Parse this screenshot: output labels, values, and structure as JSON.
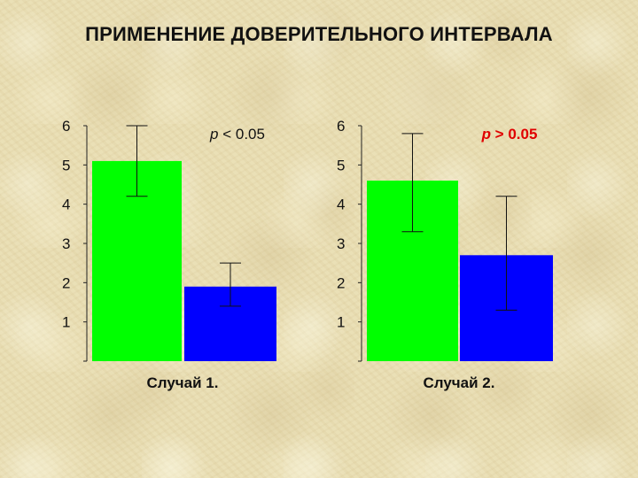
{
  "title": "ПРИМЕНЕНИЕ ДОВЕРИТЕЛЬНОГО ИНТЕРВАЛА",
  "colors": {
    "green": "#00ff00",
    "blue": "#0000ff",
    "red": "#e00000",
    "text": "#111111"
  },
  "chart_data": [
    {
      "type": "bar",
      "categories": [
        "",
        ""
      ],
      "values": [
        5.1,
        1.9
      ],
      "error_high": [
        6.0,
        2.5
      ],
      "error_low": [
        4.2,
        1.4
      ],
      "bar_colors": [
        "#00ff00",
        "#0000ff"
      ],
      "ylim": [
        0,
        6
      ],
      "yticks": [
        1,
        2,
        3,
        4,
        5,
        6
      ],
      "annotation": "p < 0.05",
      "annotation_color": "#111111",
      "caption": "Случай 1."
    },
    {
      "type": "bar",
      "categories": [
        "",
        ""
      ],
      "values": [
        4.6,
        2.7
      ],
      "error_high": [
        5.8,
        4.2
      ],
      "error_low": [
        3.3,
        1.3
      ],
      "bar_colors": [
        "#00ff00",
        "#0000ff"
      ],
      "ylim": [
        0,
        6
      ],
      "yticks": [
        1,
        2,
        3,
        4,
        5,
        6
      ],
      "annotation": "p > 0.05",
      "annotation_color": "#e00000",
      "caption": "Случай 2."
    }
  ]
}
